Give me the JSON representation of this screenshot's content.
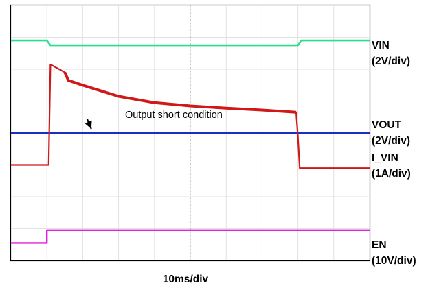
{
  "chart_data": {
    "type": "line",
    "title": "",
    "xlabel": "10ms/div",
    "grid": true,
    "divisions": {
      "x": 10,
      "y": 8
    },
    "series": [
      {
        "name": "VIN",
        "scale": "(2V/div)",
        "color": "#2fdc8c",
        "x": [
          0,
          1.0,
          1.1,
          8.0,
          8.1,
          10
        ],
        "y": [
          6.9,
          6.9,
          6.75,
          6.75,
          6.9,
          6.9
        ]
      },
      {
        "name": "VOUT",
        "scale": "(2V/div)",
        "color": "#1a2fc2",
        "x": [
          0,
          10
        ],
        "y": [
          4.0,
          4.0
        ]
      },
      {
        "name": "I_VIN",
        "scale": "(1A/div)",
        "color": "#d01818",
        "x": [
          0,
          1.05,
          1.1,
          1.5,
          1.6,
          2.0,
          3.0,
          4.0,
          5.0,
          6.0,
          7.0,
          7.95,
          8.0,
          8.05,
          10
        ],
        "y": [
          3.0,
          3.0,
          6.15,
          5.9,
          5.65,
          5.5,
          5.15,
          4.95,
          4.85,
          4.78,
          4.72,
          4.65,
          3.9,
          2.9,
          2.9
        ]
      },
      {
        "name": "EN",
        "scale": "(10V/div)",
        "color": "#e020e0",
        "x": [
          0,
          1.0,
          1.0,
          10
        ],
        "y": [
          0.55,
          0.55,
          0.95,
          0.95
        ]
      }
    ],
    "annotations": [
      {
        "text": "Output short condition",
        "x": 2.2,
        "y": 4.35,
        "arrow_to": {
          "x": 1.05,
          "y": 4.0
        }
      }
    ]
  }
}
